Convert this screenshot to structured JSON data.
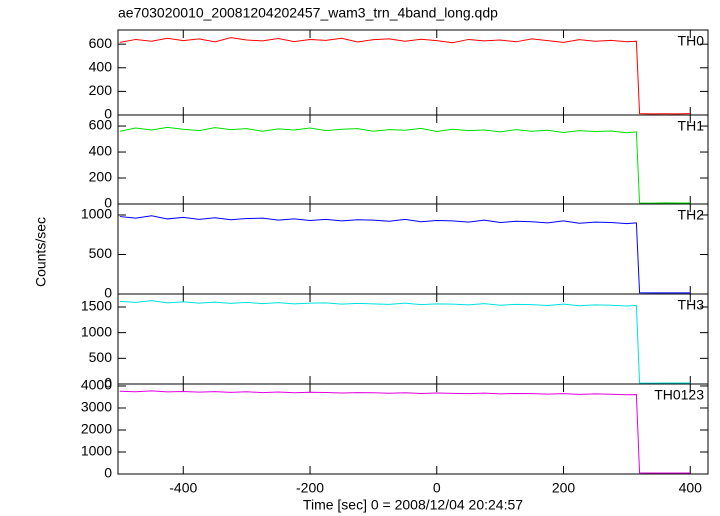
{
  "title": "ae703020010_20081204202457_wam3_trn_4band_long.qdp",
  "xlabel": "Time [sec] 0 = 2008/12/04 20:24:57",
  "ylabel": "Counts/sec",
  "chart_data": [
    {
      "type": "line",
      "x": [
        -500,
        -475,
        -450,
        -425,
        -400,
        -375,
        -350,
        -325,
        -300,
        -275,
        -250,
        -225,
        -200,
        -175,
        -150,
        -125,
        -100,
        -75,
        -50,
        -25,
        0,
        25,
        50,
        75,
        100,
        125,
        150,
        175,
        200,
        225,
        250,
        275,
        300,
        315,
        320,
        340,
        360,
        380,
        400
      ],
      "xlim": [
        -503,
        428
      ],
      "ylim": [
        0,
        720
      ],
      "yticks": [
        0,
        200,
        400,
        600
      ],
      "series": [
        {
          "name": "TH0",
          "color": "#ff0000",
          "values": [
            615,
            640,
            625,
            650,
            630,
            645,
            620,
            655,
            635,
            628,
            648,
            622,
            640,
            632,
            650,
            618,
            638,
            645,
            625,
            642,
            630,
            612,
            640,
            628,
            635,
            620,
            645,
            630,
            615,
            638,
            625,
            632,
            620,
            625,
            12,
            10,
            11,
            10,
            12
          ]
        }
      ]
    },
    {
      "type": "line",
      "x": [
        -500,
        -475,
        -450,
        -425,
        -400,
        -375,
        -350,
        -325,
        -300,
        -275,
        -250,
        -225,
        -200,
        -175,
        -150,
        -125,
        -100,
        -75,
        -50,
        -25,
        0,
        25,
        50,
        75,
        100,
        125,
        150,
        175,
        200,
        225,
        250,
        275,
        300,
        315,
        320,
        340,
        360,
        380,
        400
      ],
      "xlim": [
        -503,
        428
      ],
      "ylim": [
        0,
        685
      ],
      "yticks": [
        0,
        200,
        400,
        600
      ],
      "series": [
        {
          "name": "TH1",
          "color": "#00e000",
          "values": [
            560,
            585,
            570,
            590,
            575,
            565,
            588,
            572,
            580,
            560,
            578,
            570,
            585,
            565,
            575,
            580,
            560,
            572,
            568,
            582,
            558,
            575,
            565,
            570,
            555,
            572,
            560,
            568,
            550,
            565,
            558,
            562,
            548,
            555,
            8,
            7,
            9,
            8,
            8
          ]
        }
      ]
    },
    {
      "type": "line",
      "x": [
        -500,
        -475,
        -450,
        -425,
        -400,
        -375,
        -350,
        -325,
        -300,
        -275,
        -250,
        -225,
        -200,
        -175,
        -150,
        -125,
        -100,
        -75,
        -50,
        -25,
        0,
        25,
        50,
        75,
        100,
        125,
        150,
        175,
        200,
        225,
        250,
        275,
        300,
        315,
        320,
        340,
        360,
        380,
        400
      ],
      "xlim": [
        -503,
        428
      ],
      "ylim": [
        0,
        1139
      ],
      "yticks": [
        0,
        500,
        1000
      ],
      "series": [
        {
          "name": "TH2",
          "color": "#0000ff",
          "values": [
            980,
            960,
            990,
            950,
            970,
            945,
            965,
            940,
            955,
            960,
            935,
            950,
            930,
            945,
            925,
            940,
            935,
            920,
            945,
            915,
            930,
            925,
            910,
            935,
            905,
            920,
            915,
            900,
            925,
            895,
            910,
            905,
            890,
            900,
            15,
            14,
            15,
            14,
            15
          ]
        }
      ]
    },
    {
      "type": "line",
      "x": [
        -500,
        -475,
        -450,
        -425,
        -400,
        -375,
        -350,
        -325,
        -300,
        -275,
        -250,
        -225,
        -200,
        -175,
        -150,
        -125,
        -100,
        -75,
        -50,
        -25,
        0,
        25,
        50,
        75,
        100,
        125,
        150,
        175,
        200,
        225,
        250,
        275,
        300,
        315,
        320,
        340,
        360,
        380,
        400
      ],
      "xlim": [
        -503,
        428
      ],
      "ylim": [
        0,
        1753
      ],
      "yticks": [
        0,
        500,
        1000,
        1500
      ],
      "series": [
        {
          "name": "TH3",
          "color": "#00e0e0",
          "values": [
            1610,
            1590,
            1625,
            1580,
            1600,
            1575,
            1595,
            1570,
            1590,
            1565,
            1585,
            1560,
            1575,
            1580,
            1555,
            1570,
            1560,
            1550,
            1575,
            1545,
            1560,
            1555,
            1540,
            1565,
            1535,
            1550,
            1545,
            1530,
            1555,
            1525,
            1540,
            1535,
            1520,
            1530,
            20,
            18,
            20,
            19,
            20
          ]
        }
      ]
    },
    {
      "type": "line",
      "x": [
        -500,
        -475,
        -450,
        -425,
        -400,
        -375,
        -350,
        -325,
        -300,
        -275,
        -250,
        -225,
        -200,
        -175,
        -150,
        -125,
        -100,
        -75,
        -50,
        -25,
        0,
        25,
        50,
        75,
        100,
        125,
        150,
        175,
        200,
        225,
        250,
        275,
        300,
        315,
        320,
        340,
        360,
        380,
        400
      ],
      "xlim": [
        -503,
        428
      ],
      "ylim": [
        0,
        4090
      ],
      "yticks": [
        0,
        1000,
        2000,
        3000,
        4000
      ],
      "xticks": [
        -400,
        -200,
        0,
        200,
        400
      ],
      "series": [
        {
          "name": "TH0123",
          "color": "#e000e0",
          "values": [
            3760,
            3740,
            3780,
            3730,
            3750,
            3720,
            3745,
            3710,
            3735,
            3700,
            3725,
            3690,
            3715,
            3705,
            3680,
            3700,
            3690,
            3670,
            3695,
            3660,
            3680,
            3665,
            3650,
            3675,
            3640,
            3660,
            3650,
            3630,
            3655,
            3620,
            3640,
            3625,
            3600,
            3610,
            50,
            45,
            48,
            46,
            48
          ]
        }
      ]
    }
  ]
}
